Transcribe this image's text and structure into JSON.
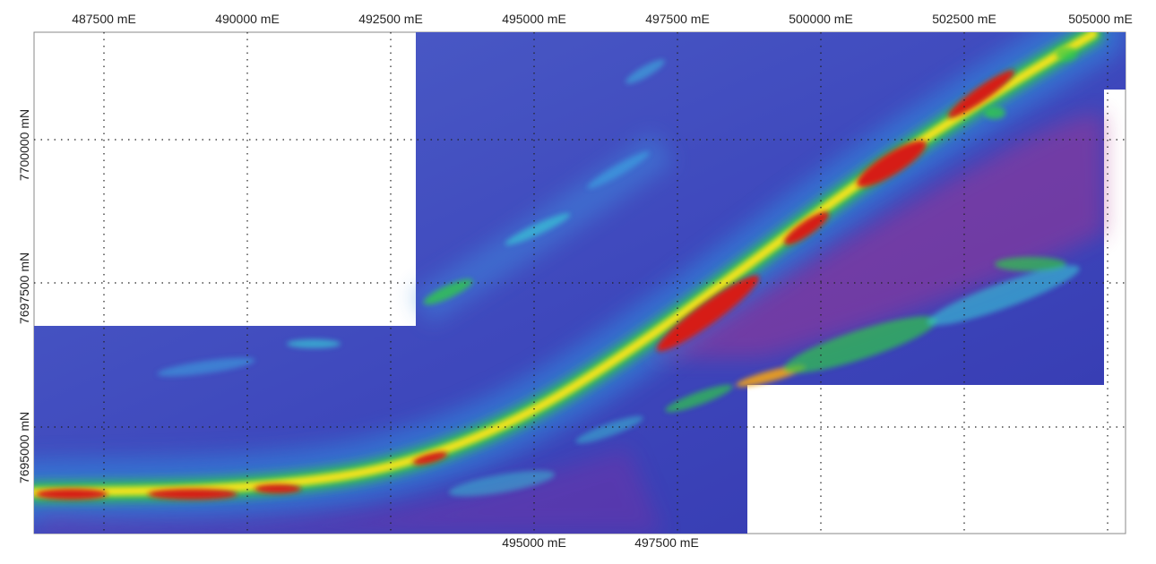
{
  "map": {
    "top_axis_labels": [
      "487500 mE",
      "490000 mE",
      "492500 mE",
      "495000 mE",
      "497500 mE",
      "500000 mE",
      "502500 mE",
      "505000 mE"
    ],
    "bottom_axis_labels": [
      "495000 mE",
      "497500 mE"
    ],
    "left_axis_labels": [
      "7700000 mN",
      "7697500 mN",
      "7695000 mN"
    ],
    "colors": {
      "background_low": "#3a3fb8",
      "mid": "#2fa0e0",
      "green": "#2ec84a",
      "yellow": "#f2e21a",
      "high": "#d61f14",
      "magenta": "#b0308c",
      "grid": "#222222"
    }
  }
}
